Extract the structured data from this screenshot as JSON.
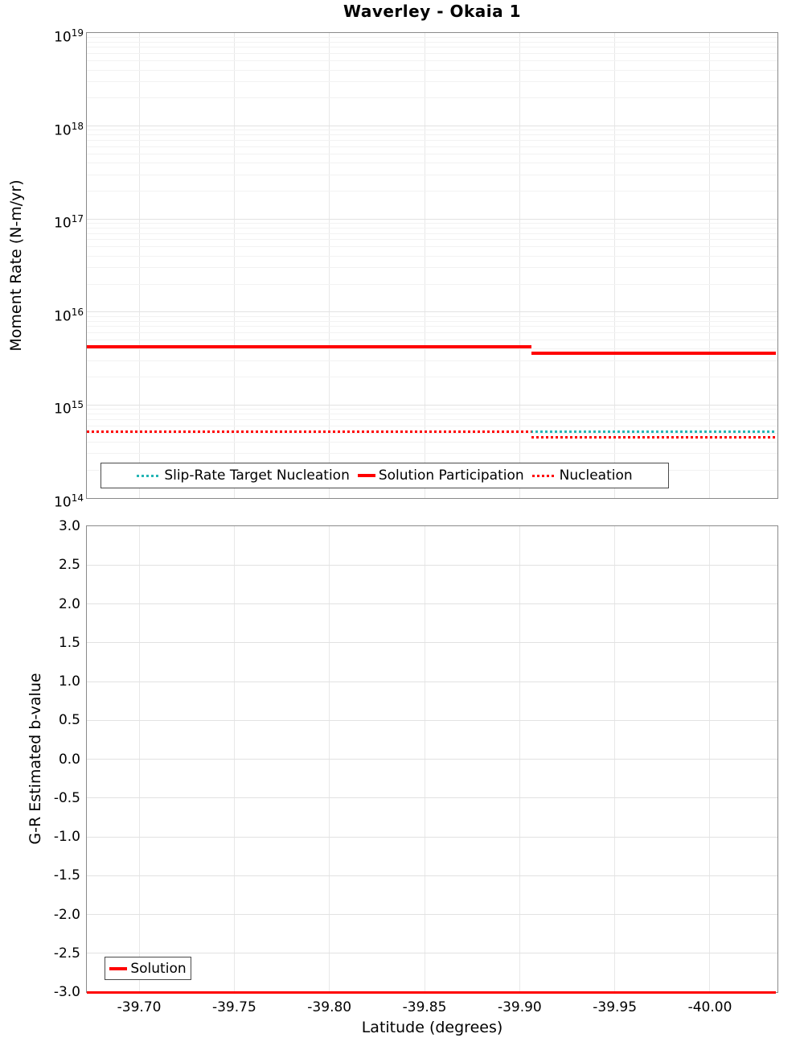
{
  "figure_title": "Waverley - Okaia 1",
  "chart_data": [
    {
      "type": "line",
      "title": "Waverley - Okaia 1",
      "ylabel": "Moment Rate (N-m/yr)",
      "yscale": "log",
      "ylim_exponents": [
        14,
        19
      ],
      "y_tick_exponents": [
        19,
        18,
        17,
        16,
        15,
        14
      ],
      "xlim": [
        -39.6725,
        -40.0355
      ],
      "x_tick_labels": [
        "-39.70",
        "-39.75",
        "-39.80",
        "-39.85",
        "-39.90",
        "-39.95",
        "-40.00"
      ],
      "grid": true,
      "legend_position": "inside-bottom-left",
      "series": [
        {
          "name": "Slip-Rate Target Nucleation",
          "color": "#23b5b5",
          "style": "dotted",
          "points": [
            [
              -39.6725,
              520000000000000.0
            ],
            [
              -40.0345,
              520000000000000.0
            ]
          ]
        },
        {
          "name": "Solution Participation",
          "color": "#ff0000",
          "style": "solid",
          "points": [
            [
              -39.6725,
              4200000000000000.0
            ],
            [
              -39.906,
              4200000000000000.0
            ],
            [
              -39.906,
              3600000000000000.0
            ],
            [
              -40.0345,
              3600000000000000.0
            ]
          ]
        },
        {
          "name": "Nucleation",
          "color": "#ff0000",
          "style": "dotted",
          "points": [
            [
              -39.6725,
              520000000000000.0
            ],
            [
              -39.906,
              520000000000000.0
            ],
            [
              -39.906,
              450000000000000.0
            ],
            [
              -40.0345,
              450000000000000.0
            ]
          ]
        }
      ]
    },
    {
      "type": "line",
      "ylabel": "G-R Estimated b-value",
      "xlabel": "Latitude (degrees)",
      "ylim": [
        -3.0,
        3.0
      ],
      "y_tick_labels": [
        "3.0",
        "2.5",
        "2.0",
        "1.5",
        "1.0",
        "0.5",
        "0.0",
        "-0.5",
        "-1.0",
        "-1.5",
        "-2.0",
        "-2.5",
        "-3.0"
      ],
      "xlim": [
        -39.6725,
        -40.0355
      ],
      "x_tick_labels": [
        "-39.70",
        "-39.75",
        "-39.80",
        "-39.85",
        "-39.90",
        "-39.95",
        "-40.00"
      ],
      "grid": true,
      "legend_position": "inside-bottom-left",
      "series": [
        {
          "name": "Solution",
          "color": "#ff0000",
          "style": "solid",
          "points": [
            [
              -39.6725,
              -3.0
            ],
            [
              -40.0345,
              -3.0
            ]
          ]
        }
      ]
    }
  ]
}
